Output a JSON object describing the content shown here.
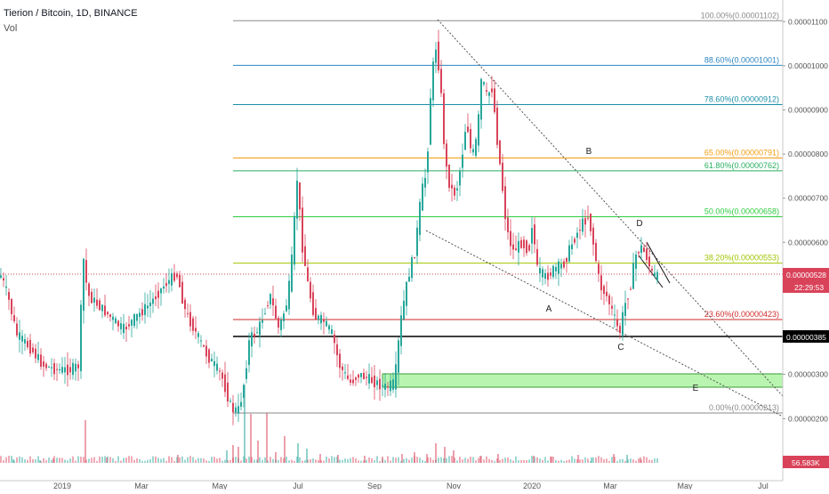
{
  "header": {
    "title": "Tierion / Bitcoin, 1D, BINANCE",
    "indicator": "Vol"
  },
  "colors": {
    "up": "#26a69a",
    "down": "#d9435a",
    "zone": "#b9f5b0",
    "text_dark": "#131722",
    "axis": "#555555"
  },
  "chart_data": {
    "type": "candlestick",
    "title": "Tierion / Bitcoin, 1D, BINANCE",
    "xlabel": "",
    "ylabel": "",
    "ylim": [
      1.6e-06,
      1.14e-05
    ],
    "x_ticks": [
      "2019",
      "Mar",
      "May",
      "Jul",
      "Sep",
      "Nov",
      "2020",
      "Mar",
      "May",
      "Jul"
    ],
    "y_ticks": [
      "0.00001100",
      "0.00001000",
      "0.00000900",
      "0.00000800",
      "0.00000700",
      "0.00000600",
      "0.00000300",
      "0.00000200"
    ],
    "price_label": "0.00000528",
    "countdown_label": "22:29:53",
    "level_label": "0.00000385",
    "volume_label": "56.583K",
    "fib_levels": [
      {
        "label": "100.00%(0.00001102)",
        "value": 1.102e-05,
        "color": "#8a8a8a"
      },
      {
        "label": "88.60%(0.00001001)",
        "value": 1.001e-05,
        "color": "#2e86c1"
      },
      {
        "label": "78.60%(0.00000912)",
        "value": 9.12e-06,
        "color": "#1b8fa8"
      },
      {
        "label": "65.00%(0.00000791)",
        "value": 7.91e-06,
        "color": "#f39c12"
      },
      {
        "label": "61.80%(0.00000762)",
        "value": 7.62e-06,
        "color": "#27ae60"
      },
      {
        "label": "50.00%(0.00000658)",
        "value": 6.58e-06,
        "color": "#2ecc40"
      },
      {
        "label": "38.20%(0.00000553)",
        "value": 5.53e-06,
        "color": "#a0c400"
      },
      {
        "label": "23.60%(0.00000423)",
        "value": 4.23e-06,
        "color": "#d12a2a"
      },
      {
        "label": "0.00%(0.00000213)",
        "value": 2.13e-06,
        "color": "#8a8a8a"
      }
    ],
    "wave_labels": [
      "A",
      "B",
      "C",
      "D",
      "E"
    ],
    "price_path": [
      [
        0,
        5.4e-06
      ],
      [
        10,
        4.8e-06
      ],
      [
        20,
        3.9e-06
      ],
      [
        35,
        3.6e-06
      ],
      [
        50,
        3.2e-06
      ],
      [
        65,
        3.1e-06
      ],
      [
        80,
        3.1e-06
      ],
      [
        90,
        3.2e-06
      ],
      [
        95,
        5.7e-06
      ],
      [
        100,
        4.8e-06
      ],
      [
        110,
        4.6e-06
      ],
      [
        125,
        4.3e-06
      ],
      [
        140,
        4e-06
      ],
      [
        155,
        4.3e-06
      ],
      [
        170,
        4.6e-06
      ],
      [
        185,
        5e-06
      ],
      [
        200,
        5.3e-06
      ],
      [
        210,
        4.4e-06
      ],
      [
        220,
        4e-06
      ],
      [
        235,
        3.4e-06
      ],
      [
        250,
        3e-06
      ],
      [
        262,
        2.2e-06
      ],
      [
        270,
        2.2e-06
      ],
      [
        275,
        2.7e-06
      ],
      [
        282,
        3.8e-06
      ],
      [
        292,
        4e-06
      ],
      [
        305,
        4.8e-06
      ],
      [
        315,
        4e-06
      ],
      [
        325,
        4.7e-06
      ],
      [
        330,
        5.7e-06
      ],
      [
        336,
        7.6e-06
      ],
      [
        340,
        6.1e-06
      ],
      [
        348,
        5e-06
      ],
      [
        355,
        4.3e-06
      ],
      [
        365,
        4.2e-06
      ],
      [
        375,
        3.9e-06
      ],
      [
        383,
        3.2e-06
      ],
      [
        395,
        2.8e-06
      ],
      [
        405,
        3e-06
      ],
      [
        415,
        2.9e-06
      ],
      [
        425,
        2.8e-06
      ],
      [
        435,
        2.7e-06
      ],
      [
        445,
        2.8e-06
      ],
      [
        452,
        4.2e-06
      ],
      [
        460,
        5.2e-06
      ],
      [
        468,
        5.8e-06
      ],
      [
        475,
        7.1e-06
      ],
      [
        481,
        7.6e-06
      ],
      [
        486,
        9.5e-06
      ],
      [
        491,
        1.05e-05
      ],
      [
        496,
        9.8e-06
      ],
      [
        502,
        7.8e-06
      ],
      [
        508,
        7.2e-06
      ],
      [
        514,
        7.1e-06
      ],
      [
        520,
        7.8e-06
      ],
      [
        526,
        8.8e-06
      ],
      [
        532,
        7.9e-06
      ],
      [
        538,
        8.4e-06
      ],
      [
        543,
        9.8e-06
      ],
      [
        548,
        9.3e-06
      ],
      [
        555,
        9.5e-06
      ],
      [
        560,
        8.4e-06
      ],
      [
        565,
        7.5e-06
      ],
      [
        571,
        6.3e-06
      ],
      [
        578,
        5.8e-06
      ],
      [
        588,
        6e-06
      ],
      [
        596,
        5.8e-06
      ],
      [
        600,
        6.5e-06
      ],
      [
        605,
        5.4e-06
      ],
      [
        615,
        5.2e-06
      ],
      [
        625,
        5.4e-06
      ],
      [
        635,
        5.5e-06
      ],
      [
        645,
        6e-06
      ],
      [
        655,
        6.4e-06
      ],
      [
        663,
        6.6e-06
      ],
      [
        670,
        5.8e-06
      ],
      [
        676,
        5e-06
      ],
      [
        683,
        4.8e-06
      ],
      [
        690,
        4.4e-06
      ],
      [
        698,
        3.9e-06
      ],
      [
        703,
        4.5e-06
      ],
      [
        710,
        5e-06
      ],
      [
        716,
        5.7e-06
      ],
      [
        722,
        5.9e-06
      ],
      [
        728,
        5.7e-06
      ],
      [
        734,
        5.3e-06
      ],
      [
        741,
        5.2e-06
      ]
    ],
    "volume_spikes": [
      [
        15,
        4
      ],
      [
        45,
        3
      ],
      [
        60,
        5
      ],
      [
        96,
        48
      ],
      [
        120,
        6
      ],
      [
        200,
        9
      ],
      [
        255,
        14
      ],
      [
        262,
        20
      ],
      [
        268,
        18
      ],
      [
        275,
        88
      ],
      [
        282,
        55
      ],
      [
        290,
        25
      ],
      [
        300,
        56
      ],
      [
        310,
        12
      ],
      [
        320,
        30
      ],
      [
        335,
        22
      ],
      [
        345,
        16
      ],
      [
        360,
        10
      ],
      [
        380,
        9
      ],
      [
        410,
        8
      ],
      [
        430,
        7
      ],
      [
        452,
        10
      ],
      [
        466,
        12
      ],
      [
        480,
        10
      ],
      [
        490,
        22
      ],
      [
        500,
        18
      ],
      [
        510,
        14
      ],
      [
        540,
        8
      ],
      [
        560,
        10
      ],
      [
        600,
        8
      ],
      [
        620,
        7
      ],
      [
        650,
        9
      ],
      [
        665,
        6
      ],
      [
        690,
        10
      ],
      [
        705,
        9
      ],
      [
        720,
        6
      ]
    ]
  }
}
